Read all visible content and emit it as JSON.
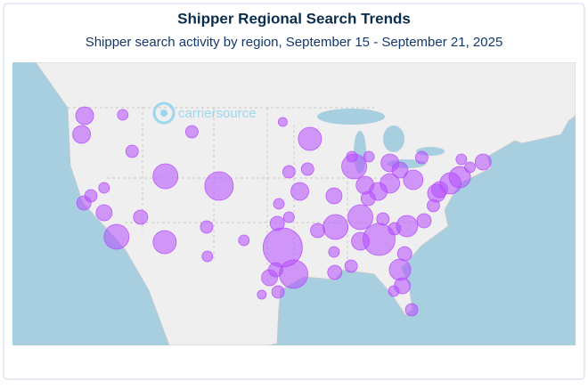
{
  "chart_data": {
    "type": "bubble",
    "title": "Shipper Regional Search Trends",
    "subtitle": "Shipper search activity by region, September 15 - September 21, 2025",
    "watermark": "carriersource",
    "color": "#b44dff",
    "xlim": [
      -131.6,
      -59.1
    ],
    "ylim": [
      21.8,
      53.6
    ],
    "x": [
      -122.3,
      -122.7,
      -117.4,
      -116.2,
      -111.9,
      -105,
      -112,
      -118.2,
      -122.4,
      -121.5,
      -119.8,
      -115.1,
      -106.6,
      -106.5,
      -108.5,
      -96.8,
      -95.4,
      -98.5,
      -97.7,
      -97.5,
      -96,
      -94.6,
      -96,
      -93.3,
      -87.6,
      -83,
      -86.2,
      -83,
      -84.5,
      -90.2,
      -90,
      -86.8,
      -85.8,
      -84.4,
      -86.8,
      -80.8,
      -78.6,
      -77.4,
      -77,
      -75.2,
      -74,
      -71,
      -80,
      -81.7,
      -78.9,
      -81.7,
      -81.4,
      -82.5,
      -80.2,
      -90.1,
      -90.2,
      -92.3,
      -81.1,
      -82.4,
      -87.9,
      -93.6,
      -96.8,
      -97.3,
      -101.8,
      -97.4,
      -99.5,
      -88,
      -83.9,
      -76.6,
      -72.7,
      -73.8,
      -85.7,
      -119.8
    ],
    "y": [
      47.6,
      45.5,
      47.7,
      43.6,
      40.8,
      39.7,
      33.4,
      34,
      37.8,
      38.6,
      36.7,
      36.2,
      35.1,
      31.8,
      45.8,
      32.8,
      29.8,
      29.4,
      30.3,
      35.5,
      36.2,
      39.1,
      41.3,
      45,
      41.9,
      42.3,
      39.8,
      40,
      39.1,
      38.6,
      35.1,
      36.2,
      38.3,
      33.7,
      33.5,
      35.2,
      35.8,
      37.5,
      38.9,
      40,
      40.7,
      42.4,
      40.4,
      41.5,
      42.9,
      30.3,
      28.5,
      27.9,
      25.8,
      30,
      32.3,
      34.7,
      32.1,
      34.9,
      43,
      41.6,
      46.9,
      37.7,
      33.6,
      27.8,
      27.5,
      30.7,
      36,
      39.3,
      41.8,
      42.7,
      43,
      39.5
    ],
    "sizes": [
      100,
      100,
      36,
      49,
      196,
      256,
      169,
      196,
      64,
      49,
      81,
      64,
      49,
      36,
      49,
      484,
      256,
      81,
      64,
      64,
      36,
      100,
      49,
      169,
      196,
      100,
      100,
      121,
      100,
      81,
      196,
      196,
      64,
      324,
      100,
      144,
      64,
      49,
      100,
      144,
      144,
      81,
      121,
      81,
      49,
      144,
      81,
      36,
      49,
      64,
      36,
      64,
      64,
      49,
      36,
      49,
      25,
      36,
      36,
      49,
      25,
      49,
      49,
      81,
      36,
      36,
      36,
      36
    ]
  }
}
